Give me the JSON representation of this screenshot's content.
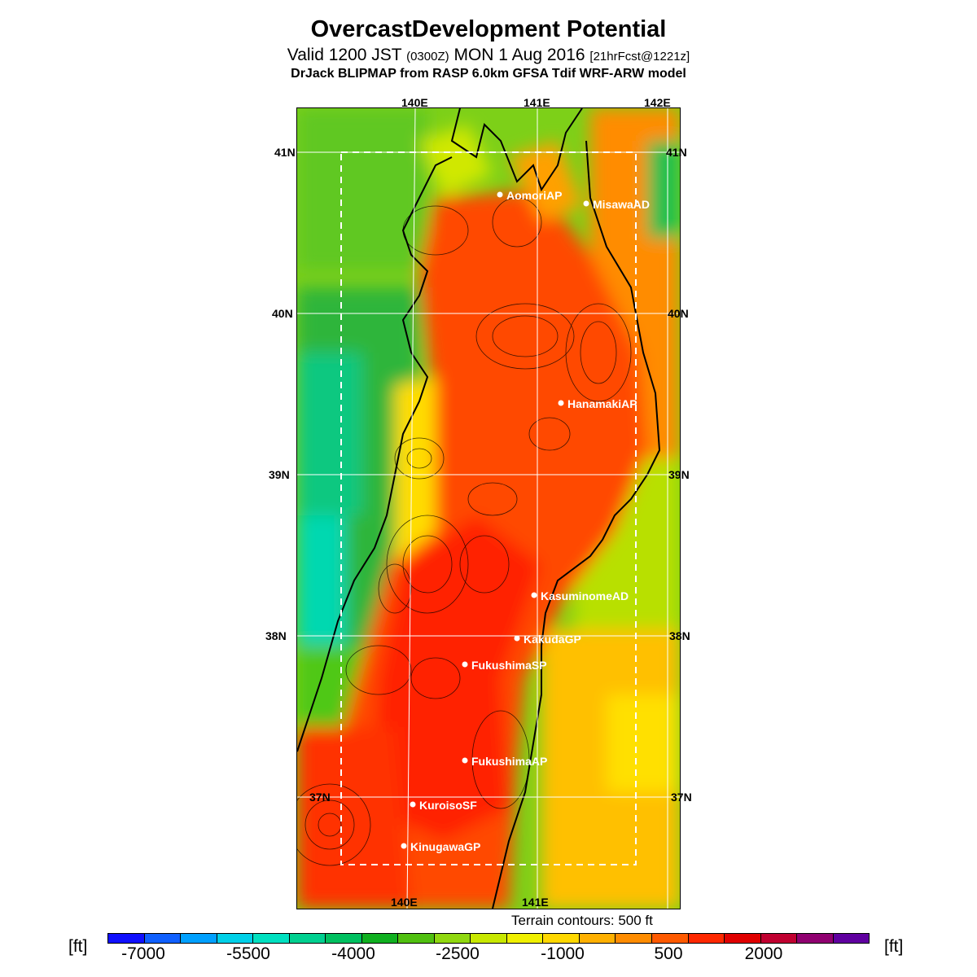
{
  "header": {
    "title": "OvercastDevelopment Potential",
    "subtitle_main": "Valid 1200 JST",
    "subtitle_utc": "(0300Z)",
    "subtitle_date": "MON 1 Aug 2016",
    "subtitle_forecast": "[21hrFcst@1221z]",
    "credit": "DrJack BLIPMAP from RASP 6.0km GFSA Tdif WRF-ARW model"
  },
  "axes": {
    "top_longitude_labels": [
      "140E",
      "141E",
      "142E"
    ],
    "bottom_longitude_labels": [
      "140E",
      "141E"
    ],
    "left_latitude_labels": [
      "41N",
      "40N",
      "39N",
      "38N",
      "37N"
    ],
    "right_latitude_labels": [
      "41N",
      "40N",
      "39N",
      "38N",
      "37N"
    ]
  },
  "stations": [
    {
      "name": "AomoriAP"
    },
    {
      "name": "MisawaAD"
    },
    {
      "name": "HanamakiAP"
    },
    {
      "name": "KasuminomeAD"
    },
    {
      "name": "KakudaGP"
    },
    {
      "name": "FukushimaSP"
    },
    {
      "name": "FukushimaAP"
    },
    {
      "name": "KuroisoSF"
    },
    {
      "name": "KinugawaGP"
    }
  ],
  "terrain_note": "Terrain contours: 500 ft",
  "legend": {
    "unit_left": "[ft]",
    "unit_right": "[ft]",
    "labels": [
      "-7000",
      "-5500",
      "-4000",
      "-2500",
      "-1000",
      "500",
      "2000"
    ],
    "colors": [
      "#1010ff",
      "#1060ff",
      "#00a0ff",
      "#00d0e8",
      "#00e0c0",
      "#00d090",
      "#00c060",
      "#10b020",
      "#50c010",
      "#90d810",
      "#c8e800",
      "#f0f000",
      "#ffd800",
      "#ffb000",
      "#ff8c00",
      "#ff5a00",
      "#ff2800",
      "#e00000",
      "#c00030",
      "#900070",
      "#6000a0"
    ]
  }
}
